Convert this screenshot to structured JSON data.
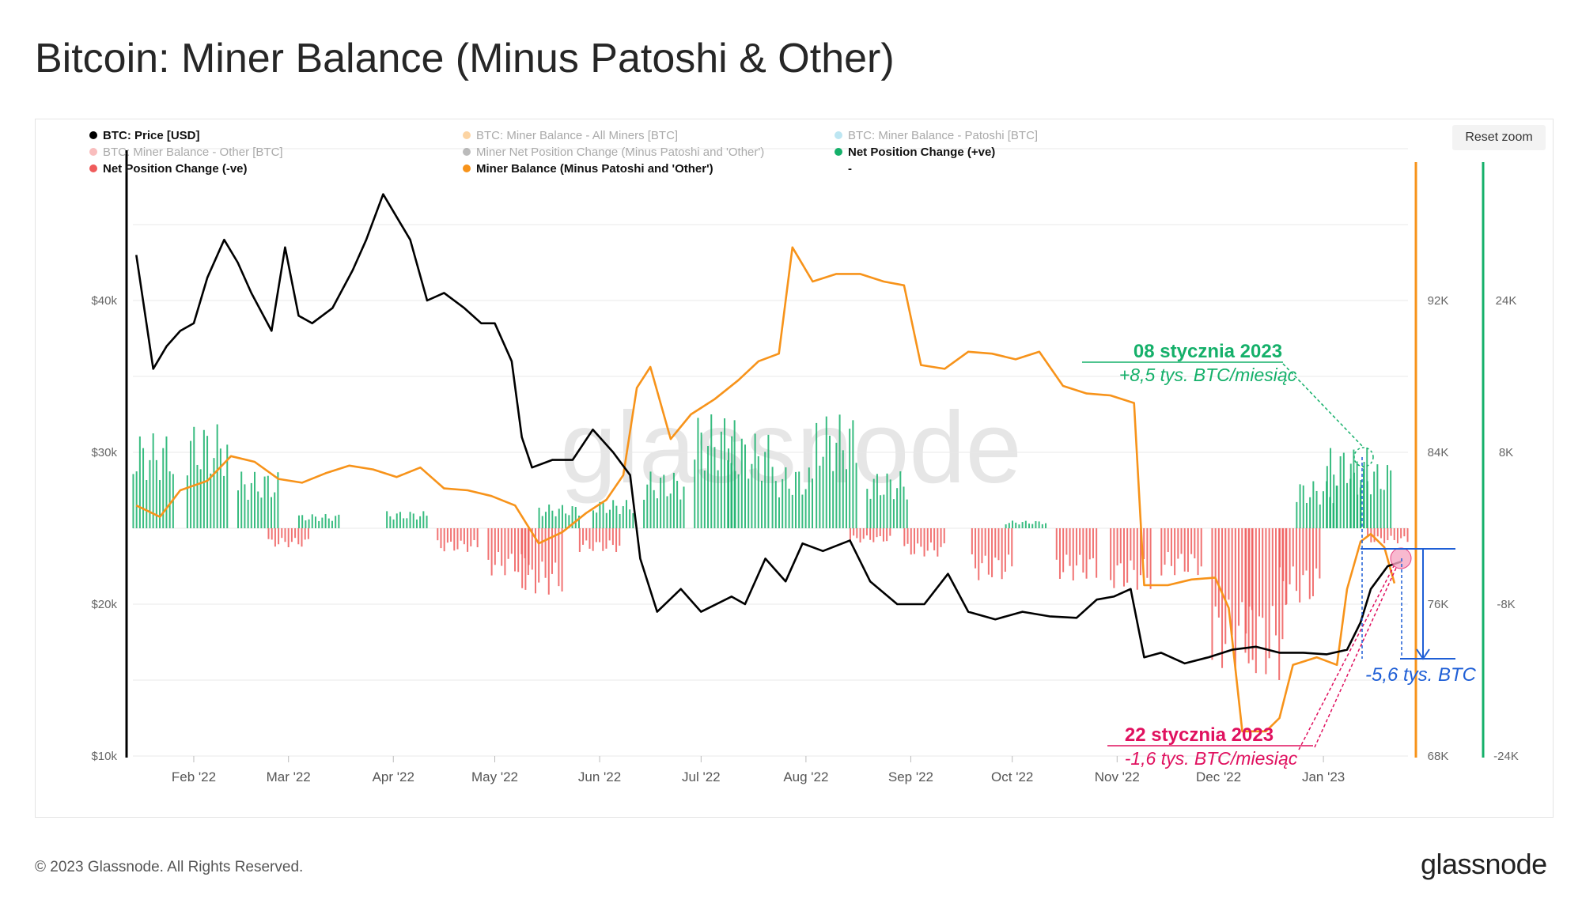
{
  "title": "Bitcoin: Miner Balance (Minus Patoshi & Other)",
  "reset_zoom_label": "Reset zoom",
  "footer": {
    "copyright": "© 2023 Glassnode. All Rights Reserved.",
    "logo": "glassnode"
  },
  "watermark": "glassnode",
  "legend": [
    {
      "label": "BTC: Price [USD]",
      "color": "#000000",
      "active": true
    },
    {
      "label": "BTC: Miner Balance - All Miners [BTC]",
      "color": "#f7931a",
      "active": false
    },
    {
      "label": "BTC: Miner Balance - Patoshi [BTC]",
      "color": "#5bc0de",
      "active": false
    },
    {
      "label": "BTC: Miner Balance - Other [BTC]",
      "color": "#ef5b5b",
      "active": false
    },
    {
      "label": "Miner Net Position Change (Minus Patoshi and 'Other')",
      "color": "#555555",
      "active": false
    },
    {
      "label": "Net Position Change (+ve)",
      "color": "#15b06a",
      "active": true
    },
    {
      "label": "Net Position Change (-ve)",
      "color": "#ef5b5b",
      "active": true
    },
    {
      "label": "Miner Balance (Minus Patoshi and 'Other')",
      "color": "#f7931a",
      "active": true
    },
    {
      "label": "-",
      "color": null,
      "active": true
    }
  ],
  "annotations": [
    {
      "title": "08 stycznia 2023",
      "subtitle": "+8,5 tys. BTC/miesiąc",
      "color": "#15b06a",
      "date": "2023-01-08"
    },
    {
      "title": "22 stycznia 2023",
      "subtitle": "-1,6 tys. BTC/miesiąc",
      "color": "#e0115f",
      "date": "2023-01-22"
    },
    {
      "title": "-5,6 tys. BTC",
      "color": "#1f5fd6"
    }
  ],
  "chart_data": {
    "type": "line",
    "x_ticks": [
      "Feb '22",
      "Mar '22",
      "Apr '22",
      "May '22",
      "Jun '22",
      "Jul '22",
      "Aug '22",
      "Sep '22",
      "Oct '22",
      "Nov '22",
      "Dec '22",
      "Jan '23"
    ],
    "axes": {
      "price": {
        "ticks": [
          "$10k",
          "$20k",
          "$30k",
          "$40k"
        ],
        "range": [
          10000,
          50000
        ],
        "position": "left"
      },
      "balance": {
        "ticks": [
          "68K",
          "76K",
          "84K",
          "92K"
        ],
        "range": [
          68000,
          100000
        ],
        "position": "right"
      },
      "net_change": {
        "ticks": [
          "-24K",
          "-8K",
          "8K",
          "24K"
        ],
        "range": [
          -24000,
          40000
        ],
        "position": "far-right"
      }
    },
    "grid": true,
    "series": [
      {
        "name": "BTC: Price [USD]",
        "axis": "price",
        "color": "#000000",
        "x": [
          "2022-01-15",
          "2022-01-20",
          "2022-01-24",
          "2022-01-28",
          "2022-02-01",
          "2022-02-05",
          "2022-02-10",
          "2022-02-14",
          "2022-02-18",
          "2022-02-24",
          "2022-02-28",
          "2022-03-04",
          "2022-03-08",
          "2022-03-14",
          "2022-03-20",
          "2022-03-24",
          "2022-03-29",
          "2022-04-02",
          "2022-04-06",
          "2022-04-11",
          "2022-04-16",
          "2022-04-22",
          "2022-04-27",
          "2022-05-01",
          "2022-05-06",
          "2022-05-09",
          "2022-05-12",
          "2022-05-18",
          "2022-05-24",
          "2022-05-30",
          "2022-06-05",
          "2022-06-10",
          "2022-06-13",
          "2022-06-18",
          "2022-06-25",
          "2022-07-01",
          "2022-07-10",
          "2022-07-14",
          "2022-07-20",
          "2022-07-26",
          "2022-07-31",
          "2022-08-06",
          "2022-08-14",
          "2022-08-20",
          "2022-08-28",
          "2022-09-05",
          "2022-09-12",
          "2022-09-18",
          "2022-09-26",
          "2022-10-04",
          "2022-10-12",
          "2022-10-20",
          "2022-10-26",
          "2022-10-31",
          "2022-11-05",
          "2022-11-09",
          "2022-11-14",
          "2022-11-21",
          "2022-11-28",
          "2022-12-05",
          "2022-12-12",
          "2022-12-19",
          "2022-12-26",
          "2023-01-02",
          "2023-01-08",
          "2023-01-12",
          "2023-01-15",
          "2023-01-20",
          "2023-01-24"
        ],
        "values": [
          43000,
          35500,
          37000,
          38000,
          38500,
          41500,
          44000,
          42500,
          40500,
          38000,
          43500,
          39000,
          38500,
          39500,
          42000,
          44000,
          47000,
          45500,
          44000,
          40000,
          40500,
          39500,
          38500,
          38500,
          36000,
          31000,
          29000,
          29500,
          29500,
          31500,
          30000,
          28500,
          23000,
          19500,
          21000,
          19500,
          20500,
          20000,
          23000,
          21500,
          24000,
          23500,
          24200,
          21500,
          20000,
          20000,
          22000,
          19500,
          19000,
          19500,
          19200,
          19100,
          20300,
          20500,
          21000,
          16500,
          16800,
          16100,
          16500,
          17000,
          17200,
          16800,
          16800,
          16700,
          17000,
          18800,
          21000,
          22500,
          22800
        ]
      },
      {
        "name": "Miner Balance (Minus Patoshi and 'Other')",
        "axis": "balance",
        "color": "#f7931a",
        "x": [
          "2022-01-15",
          "2022-01-22",
          "2022-01-28",
          "2022-02-05",
          "2022-02-12",
          "2022-02-19",
          "2022-02-26",
          "2022-03-05",
          "2022-03-12",
          "2022-03-19",
          "2022-03-26",
          "2022-04-02",
          "2022-04-09",
          "2022-04-16",
          "2022-04-23",
          "2022-04-30",
          "2022-05-07",
          "2022-05-14",
          "2022-05-21",
          "2022-05-28",
          "2022-06-03",
          "2022-06-08",
          "2022-06-12",
          "2022-06-16",
          "2022-06-22",
          "2022-06-28",
          "2022-07-05",
          "2022-07-12",
          "2022-07-18",
          "2022-07-24",
          "2022-07-28",
          "2022-08-03",
          "2022-08-10",
          "2022-08-17",
          "2022-08-24",
          "2022-08-30",
          "2022-09-04",
          "2022-09-11",
          "2022-09-18",
          "2022-09-25",
          "2022-10-02",
          "2022-10-09",
          "2022-10-16",
          "2022-10-23",
          "2022-10-30",
          "2022-11-06",
          "2022-11-09",
          "2022-11-16",
          "2022-11-23",
          "2022-11-30",
          "2022-12-04",
          "2022-12-08",
          "2022-12-15",
          "2022-12-19",
          "2022-12-23",
          "2022-12-30",
          "2023-01-05",
          "2023-01-08",
          "2023-01-12",
          "2023-01-15",
          "2023-01-19",
          "2023-01-22"
        ],
        "values": [
          81200,
          80600,
          82000,
          82500,
          83800,
          83500,
          82600,
          82400,
          82900,
          83300,
          83100,
          82700,
          83200,
          82100,
          82000,
          81700,
          81200,
          79200,
          79800,
          80800,
          81500,
          82800,
          87400,
          88500,
          84700,
          86000,
          86800,
          87800,
          88800,
          89200,
          94800,
          93000,
          93400,
          93400,
          93000,
          92800,
          88600,
          88400,
          89300,
          89200,
          88900,
          89300,
          87500,
          87100,
          87000,
          86600,
          77000,
          77000,
          77300,
          77400,
          75800,
          69300,
          69300,
          70000,
          72800,
          73200,
          72800,
          76800,
          79300,
          79700,
          79000,
          77100
        ]
      },
      {
        "name": "Net Position Change (+ve)",
        "axis": "net_change",
        "type": "bar",
        "color": "#15b06a",
        "x": [
          "2022-01-20",
          "2022-02-05",
          "2022-02-20",
          "2022-03-10",
          "2022-04-05",
          "2022-05-20",
          "2022-06-05",
          "2022-06-20",
          "2022-07-05",
          "2022-07-15",
          "2022-07-28",
          "2022-08-10",
          "2022-08-25",
          "2022-10-05",
          "2022-12-30",
          "2023-01-08",
          "2023-01-15"
        ],
        "values": [
          10000,
          11000,
          6000,
          1500,
          1800,
          2500,
          3000,
          6000,
          12000,
          10000,
          6500,
          12000,
          6000,
          800,
          5000,
          8500,
          7000
        ]
      },
      {
        "name": "Net Position Change (-ve)",
        "axis": "net_change",
        "type": "bar",
        "color": "#ef5b5b",
        "x": [
          "2022-03-01",
          "2022-04-20",
          "2022-05-05",
          "2022-05-15",
          "2022-06-01",
          "2022-08-20",
          "2022-09-05",
          "2022-09-25",
          "2022-10-20",
          "2022-11-05",
          "2022-11-20",
          "2022-12-05",
          "2022-12-15",
          "2022-12-25",
          "2023-01-20"
        ],
        "values": [
          -2000,
          -2500,
          -5000,
          -7000,
          -2500,
          -1500,
          -3000,
          -5500,
          -5500,
          -6500,
          -5000,
          -15000,
          -16000,
          -8000,
          -1600
        ]
      }
    ]
  }
}
